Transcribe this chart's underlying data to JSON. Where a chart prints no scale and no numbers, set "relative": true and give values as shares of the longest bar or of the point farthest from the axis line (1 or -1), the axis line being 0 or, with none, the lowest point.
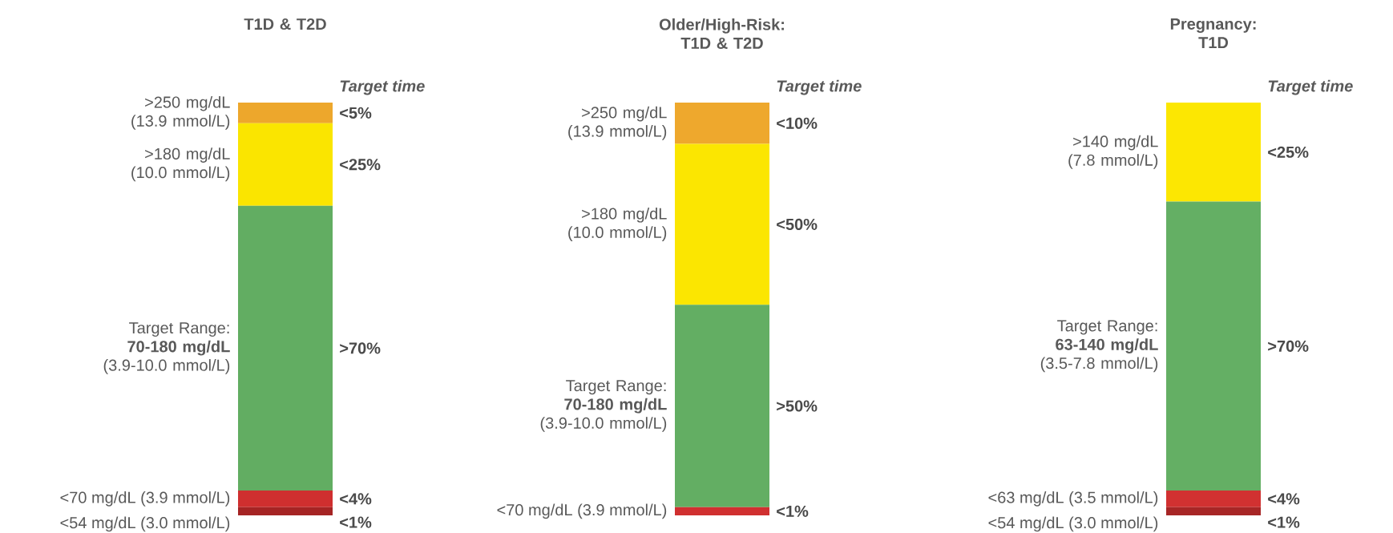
{
  "chart_data": [
    {
      "type": "bar",
      "stacked": true,
      "relative": true,
      "title": "T1D & T2D",
      "categories": [
        null
      ],
      "annotations": [
        "Target time",
        "<5%",
        "<25%",
        ">70%",
        "<4%",
        "<1%"
      ],
      "series": [
        {
          "name": "<54 mg/dL (3.0 mmol/L)",
          "color": "#a52424",
          "values": [
            0.02
          ]
        },
        {
          "name": "<70 mg/dL (3.9 mmol/L)",
          "color": "#cf2f2f",
          "values": [
            0.04
          ]
        },
        {
          "name": "Target Range: **70-180 mg/dL** (3.9-10.0 mmol/L)",
          "color": "#62ad62",
          "values": [
            0.69
          ]
        },
        {
          "name": ">180 mg/dL (10.0 mmol/L)",
          "color": "#fae500",
          "values": [
            0.2
          ]
        },
        {
          "name": ">250 mg/dL (13.9 mmol/L)",
          "color": "#eda72c",
          "values": [
            0.05
          ]
        }
      ]
    },
    {
      "type": "bar",
      "stacked": true,
      "relative": true,
      "title": "Older/High-Risk: T1D & T2D",
      "categories": [
        null
      ],
      "annotations": [
        "Target time",
        "<10%",
        "<50%",
        ">50%",
        "<1%"
      ],
      "series": [
        {
          "name": "<70 mg/dL (3.9 mmol/L)",
          "color": "#d03030",
          "values": [
            0.02
          ]
        },
        {
          "name": "Target Range: **70-180 mg/dL** (3.9-10.0 mmol/L)",
          "color": "#63ae63",
          "values": [
            0.49
          ]
        },
        {
          "name": ">180 mg/dL (10.0 mmol/L)",
          "color": "#fbe601",
          "values": [
            0.39
          ]
        },
        {
          "name": ">250 mg/dL (13.9 mmol/L)",
          "color": "#eea82d",
          "values": [
            0.1
          ]
        }
      ]
    },
    {
      "type": "bar",
      "stacked": true,
      "relative": true,
      "title": "Pregnancy: T1D",
      "categories": [
        null
      ],
      "annotations": [
        "Target time",
        "<25%",
        ">70%",
        "<4%",
        "<1%"
      ],
      "series": [
        {
          "name": "<54 mg/dL (3.0 mmol/L)",
          "color": "#a72626",
          "values": [
            0.02
          ]
        },
        {
          "name": "<63 mg/dL (3.5 mmol/L)",
          "color": "#d13131",
          "values": [
            0.04
          ]
        },
        {
          "name": "Target Range: **63-140 mg/dL** (3.5-7.8 mmol/L)",
          "color": "#64af64",
          "values": [
            0.7
          ]
        },
        {
          "name": ">140 mg/dL (7.8 mmol/L)",
          "color": "#fce702",
          "values": [
            0.24
          ]
        }
      ]
    }
  ]
}
